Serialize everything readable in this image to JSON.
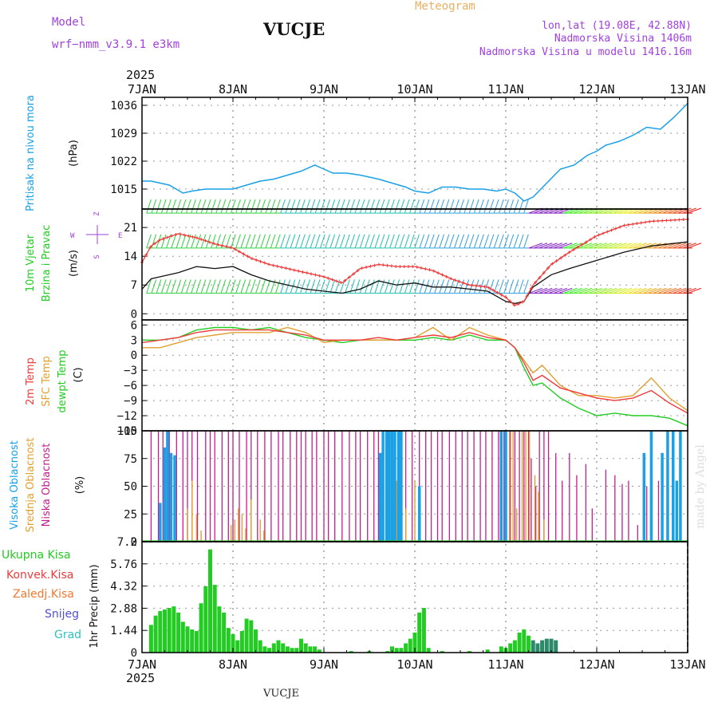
{
  "header": {
    "model_label": "Model",
    "model_name": "wrf−nmm_v3.9.1  e3km",
    "station": "VUCJE",
    "meteogram": "Meteogram",
    "lonlat": "lon,lat (19.08E, 42.88N)",
    "elevation": "Nadmorska Visina 1406m",
    "model_elevation": "Nadmorska Visina u modelu 1416.16m",
    "footer_station": "VUCJE",
    "credit": "made by Angel"
  },
  "time_axis": {
    "year": "2025",
    "labels": [
      "7JAN",
      "8JAN",
      "9JAN",
      "10JAN",
      "11JAN",
      "12JAN",
      "13JAN"
    ]
  },
  "colors": {
    "pressure": "#19a0e6",
    "temp2m": "#ef3b3b",
    "sfc_temp": "#e0a030",
    "dewpoint": "#22cc22",
    "wind_speed": "#111111",
    "wind_dir": "#ef3b3b",
    "cloud_high": "#19a0e6",
    "cloud_mid": "#e0a030",
    "cloud_low": "#c0208a",
    "precip_total": "#22cc22",
    "precip_conv": "#ef3b3b",
    "precip_frz": "#f07830",
    "precip_snow": "#5050d0",
    "precip_grad": "#30c0c0"
  },
  "chart_data": [
    {
      "type": "line",
      "panel": "pressure",
      "title": "Pritisak na nivou mora",
      "ylabel": "(hPa)",
      "yticks": [
        "1015",
        "1022",
        "1029",
        "1036"
      ],
      "ylim": [
        1010,
        1038
      ],
      "x_days": [
        0,
        0.1,
        0.2,
        0.3,
        0.45,
        0.55,
        0.7,
        0.85,
        1.0,
        1.15,
        1.3,
        1.45,
        1.6,
        1.75,
        1.9,
        2.0,
        2.1,
        2.25,
        2.4,
        2.6,
        2.75,
        2.9,
        3.0,
        3.15,
        3.3,
        3.45,
        3.6,
        3.75,
        3.9,
        4.0,
        4.1,
        4.2,
        4.3,
        4.45,
        4.6,
        4.75,
        4.9,
        5.0,
        5.1,
        5.25,
        5.4,
        5.55,
        5.7,
        5.85,
        6.0
      ],
      "values": [
        1017,
        1017,
        1016.5,
        1016,
        1014,
        1014.5,
        1015,
        1015,
        1015,
        1016,
        1017,
        1017.5,
        1018.5,
        1019.5,
        1021,
        1020,
        1019,
        1019,
        1018.5,
        1017.5,
        1016.5,
        1015.5,
        1014.5,
        1014,
        1015.5,
        1015.5,
        1015,
        1015,
        1014.5,
        1015,
        1014,
        1012,
        1013,
        1016.5,
        1020,
        1021,
        1023.5,
        1024.5,
        1026,
        1027,
        1028.5,
        1030.5,
        1030,
        1033,
        1036.5
      ]
    },
    {
      "type": "line",
      "panel": "wind",
      "title": "10m Vjetar",
      "subtitle": "Brzina i Pravac",
      "ylabel": "(m/s)",
      "yticks": [
        "0",
        "7",
        "14",
        "21"
      ],
      "ylim": [
        -1.5,
        25.5
      ],
      "compass": [
        "Z",
        "W",
        "E",
        "S"
      ],
      "series": [
        {
          "name": "Brzina (speed)",
          "x_days": [
            0,
            0.1,
            0.2,
            0.4,
            0.6,
            0.8,
            1.0,
            1.2,
            1.4,
            1.6,
            1.8,
            2.0,
            2.2,
            2.4,
            2.6,
            2.8,
            3.0,
            3.2,
            3.4,
            3.6,
            3.8,
            4.0,
            4.1,
            4.2,
            4.3,
            4.5,
            4.7,
            5.0,
            5.3,
            5.6,
            6.0
          ],
          "values": [
            6,
            8.5,
            9,
            10,
            11.5,
            11,
            11.5,
            9.5,
            8,
            7,
            6,
            5.5,
            5,
            6,
            8,
            7,
            7.5,
            6.5,
            6.5,
            6,
            5.5,
            3,
            2.5,
            3,
            6.5,
            9.5,
            11,
            13,
            15,
            16.5,
            17.5
          ]
        },
        {
          "name": "Pravac (direction)",
          "x_days": [
            0,
            0.1,
            0.2,
            0.4,
            0.6,
            0.8,
            1.0,
            1.2,
            1.4,
            1.6,
            1.8,
            2.0,
            2.2,
            2.4,
            2.6,
            2.8,
            3.0,
            3.2,
            3.4,
            3.6,
            3.8,
            4.0,
            4.1,
            4.2,
            4.3,
            4.5,
            4.7,
            5.0,
            5.3,
            5.6,
            6.0
          ],
          "values": [
            12.5,
            16.5,
            18,
            19.5,
            18.5,
            17,
            16,
            13.5,
            12,
            11,
            10,
            9,
            7.5,
            11,
            12,
            11.5,
            11.5,
            10.5,
            8.5,
            7,
            6.5,
            4,
            2,
            3,
            7,
            12,
            15,
            19,
            21.5,
            22.5,
            23
          ]
        }
      ],
      "barb_rows": [
        {
          "level": 24.5,
          "x_range": [
            0.05,
            6.0
          ]
        },
        {
          "level": 16.0,
          "x_range": [
            0.05,
            6.0
          ]
        },
        {
          "level": 5.0,
          "x_range": [
            0.05,
            6.0
          ]
        }
      ]
    },
    {
      "type": "line",
      "panel": "temperature",
      "titles": [
        "2m Temp",
        "SFC Temp",
        "dewpt Temp"
      ],
      "ylabel": "(C)",
      "yticks": [
        "6",
        "3",
        "0",
        "−3",
        "−6",
        "−9",
        "−12",
        "−15"
      ],
      "ylim": [
        -15,
        7
      ],
      "series": [
        {
          "name": "2m Temp",
          "x_days": [
            0,
            0.2,
            0.4,
            0.6,
            0.8,
            1.0,
            1.2,
            1.4,
            1.6,
            1.8,
            2.0,
            2.2,
            2.4,
            2.6,
            2.8,
            3.0,
            3.2,
            3.4,
            3.6,
            3.8,
            4.0,
            4.1,
            4.2,
            4.3,
            4.4,
            4.6,
            4.8,
            5.0,
            5.2,
            5.4,
            5.6,
            5.8,
            6.0
          ],
          "values": [
            2.5,
            3,
            3.5,
            4.5,
            5,
            5,
            5,
            5,
            4.5,
            4,
            3,
            3,
            3,
            3.5,
            3,
            3.5,
            4,
            3.5,
            4.5,
            3.5,
            3,
            1.5,
            -1.5,
            -5,
            -4,
            -6.5,
            -7.5,
            -8.5,
            -9,
            -8.5,
            -7,
            -9.5,
            -11.5
          ]
        },
        {
          "name": "SFC Temp",
          "x_days": [
            0,
            0.2,
            0.4,
            0.6,
            0.8,
            1.0,
            1.2,
            1.4,
            1.6,
            1.8,
            2.0,
            2.2,
            2.4,
            2.6,
            2.8,
            3.0,
            3.2,
            3.4,
            3.6,
            3.8,
            4.0,
            4.1,
            4.2,
            4.3,
            4.4,
            4.6,
            4.8,
            5.0,
            5.2,
            5.4,
            5.6,
            5.8,
            6.0
          ],
          "values": [
            1.5,
            1.5,
            2.5,
            3.5,
            4,
            4.5,
            4.5,
            4.5,
            5.5,
            4.5,
            2.5,
            3,
            3,
            3,
            3,
            3.5,
            5.5,
            3,
            5.5,
            4,
            3,
            1.5,
            -1,
            -3.5,
            -2,
            -6,
            -8,
            -8,
            -8.5,
            -8,
            -4.5,
            -8.5,
            -11
          ]
        },
        {
          "name": "dewpt Temp",
          "x_days": [
            0,
            0.2,
            0.4,
            0.6,
            0.8,
            1.0,
            1.2,
            1.4,
            1.6,
            1.8,
            2.0,
            2.2,
            2.4,
            2.6,
            2.8,
            3.0,
            3.2,
            3.4,
            3.6,
            3.8,
            4.0,
            4.1,
            4.2,
            4.3,
            4.4,
            4.6,
            4.8,
            5.0,
            5.2,
            5.4,
            5.6,
            5.8,
            6.0
          ],
          "values": [
            3,
            3,
            3.5,
            5,
            5.5,
            5.5,
            5,
            5.5,
            4.5,
            3.5,
            3,
            2.5,
            3,
            3,
            3,
            3,
            3.5,
            3,
            4,
            3,
            3,
            1.5,
            -2.5,
            -6,
            -5.5,
            -8.5,
            -10.5,
            -12,
            -11.5,
            -12,
            -12,
            -12.5,
            -14
          ]
        }
      ]
    },
    {
      "type": "bar",
      "panel": "clouds",
      "titles": [
        "Visoka Oblacnost",
        "Srednja Oblacnost",
        "Niska Oblacnost"
      ],
      "ylabel": "(%)",
      "yticks": [
        "0",
        "25",
        "50",
        "75",
        "100"
      ],
      "ylim": [
        0,
        100
      ],
      "series": [
        {
          "name": "Visoka Oblacnost",
          "x_days": [
            0.2,
            0.25,
            0.28,
            0.32,
            0.36,
            2.62,
            2.65,
            2.69,
            2.72,
            2.75,
            2.78,
            2.82,
            2.85,
            3.05,
            3.95,
            4.0,
            5.52,
            5.6,
            5.72,
            5.78,
            5.84,
            5.88,
            5.92
          ],
          "values": [
            35,
            85,
            100,
            80,
            78,
            80,
            100,
            100,
            100,
            100,
            100,
            100,
            100,
            50,
            100,
            100,
            80,
            100,
            80,
            100,
            100,
            55,
            100
          ]
        },
        {
          "name": "Srednja Oblacnost",
          "x_days": [
            0.24,
            0.5,
            0.55,
            0.6,
            0.65,
            0.98,
            1.02,
            1.06,
            1.1,
            1.14,
            1.2,
            1.3,
            1.34,
            2.7,
            2.76,
            2.8,
            2.9,
            3.0,
            3.06,
            4.04,
            4.08,
            4.12,
            4.18,
            4.22,
            4.26,
            4.32,
            4.36,
            4.42
          ],
          "values": [
            20,
            30,
            55,
            25,
            10,
            15,
            20,
            30,
            25,
            12,
            38,
            20,
            10,
            85,
            75,
            55,
            30,
            55,
            35,
            100,
            100,
            30,
            100,
            100,
            100,
            60,
            45,
            20
          ]
        },
        {
          "name": "Niska Oblacnost",
          "x_days": [
            0.1,
            0.18,
            0.23,
            0.3,
            0.38,
            0.45,
            0.5,
            0.55,
            0.61,
            0.7,
            0.75,
            0.8,
            0.88,
            0.95,
            1.0,
            1.07,
            1.15,
            1.2,
            1.27,
            1.35,
            1.42,
            1.5,
            1.55,
            1.63,
            1.7,
            1.75,
            1.8,
            1.87,
            1.92,
            2.0,
            2.05,
            2.12,
            2.2,
            2.28,
            2.35,
            2.4,
            2.48,
            2.55,
            2.6,
            2.65,
            2.7,
            2.78,
            2.83,
            2.9,
            2.97,
            3.05,
            3.12,
            3.18,
            3.25,
            3.3,
            3.38,
            3.45,
            3.52,
            3.58,
            3.65,
            3.72,
            3.78,
            3.85,
            3.92,
            3.98,
            4.05,
            4.1,
            4.15,
            4.2,
            4.25,
            4.28,
            4.33,
            4.37,
            4.42,
            4.47,
            4.55,
            4.62,
            4.7,
            4.78,
            4.88,
            4.95,
            5.1,
            5.2,
            5.28,
            5.35,
            5.45,
            5.55,
            5.68,
            5.78,
            5.92
          ],
          "values": [
            100,
            100,
            100,
            100,
            100,
            100,
            100,
            100,
            100,
            100,
            100,
            100,
            100,
            100,
            100,
            100,
            100,
            100,
            100,
            100,
            100,
            100,
            100,
            100,
            100,
            100,
            100,
            100,
            100,
            100,
            100,
            100,
            100,
            100,
            100,
            100,
            100,
            100,
            100,
            100,
            100,
            100,
            100,
            100,
            100,
            100,
            100,
            100,
            100,
            100,
            100,
            100,
            100,
            100,
            100,
            100,
            100,
            100,
            100,
            100,
            100,
            100,
            100,
            100,
            100,
            75,
            50,
            100,
            100,
            100,
            80,
            55,
            80,
            60,
            70,
            30,
            65,
            60,
            52,
            55,
            15,
            50,
            55,
            40,
            75
          ]
        }
      ]
    },
    {
      "type": "bar",
      "panel": "precipitation",
      "ylabel": "1hr Precip (mm)",
      "legend": [
        "Ukupna Kisa",
        "Konvek.Kisa",
        "Zaledj.Kisa",
        "Snijeg",
        "Grad"
      ],
      "yticks": [
        "0",
        "1.44",
        "2.88",
        "4.32",
        "5.76",
        "7.2"
      ],
      "ylim": [
        0,
        7.2
      ],
      "series": [
        {
          "name": "Ukupna Kisa",
          "x_days": [
            0.1,
            0.15,
            0.2,
            0.25,
            0.3,
            0.35,
            0.4,
            0.45,
            0.5,
            0.55,
            0.6,
            0.65,
            0.7,
            0.75,
            0.8,
            0.85,
            0.9,
            0.95,
            1.0,
            1.05,
            1.1,
            1.15,
            1.2,
            1.25,
            1.3,
            1.35,
            1.4,
            1.45,
            1.5,
            1.55,
            1.6,
            1.65,
            1.7,
            1.75,
            1.8,
            1.85,
            1.9,
            1.95,
            2.3,
            2.5,
            2.7,
            2.75,
            2.8,
            2.85,
            2.9,
            2.95,
            3.0,
            3.05,
            3.1,
            3.15,
            3.3,
            3.6,
            3.8,
            3.95,
            4.0,
            4.05,
            4.1,
            4.15,
            4.2,
            4.25,
            4.3,
            4.35,
            4.4,
            4.45,
            4.5,
            4.55
          ],
          "values": [
            1.8,
            2.4,
            2.7,
            2.8,
            2.9,
            3.0,
            2.6,
            2.0,
            1.7,
            1.5,
            1.4,
            3.2,
            4.3,
            6.7,
            4.4,
            3.0,
            2.6,
            1.6,
            1.2,
            0.8,
            1.4,
            2.2,
            2.1,
            1.5,
            0.8,
            0.4,
            0.3,
            0.6,
            0.8,
            0.6,
            0.4,
            0.3,
            0.3,
            0.9,
            0.6,
            0.4,
            0.4,
            0.2,
            0.1,
            0.1,
            0.1,
            0.4,
            0.3,
            0.3,
            0.6,
            0.9,
            1.3,
            2.6,
            2.9,
            0.3,
            0.1,
            0.1,
            0.2,
            0.4,
            0.3,
            0.6,
            0.8,
            1.3,
            1.5,
            1.1,
            0.8,
            0.6,
            0.8,
            0.9,
            0.9,
            0.8
          ]
        }
      ]
    }
  ]
}
